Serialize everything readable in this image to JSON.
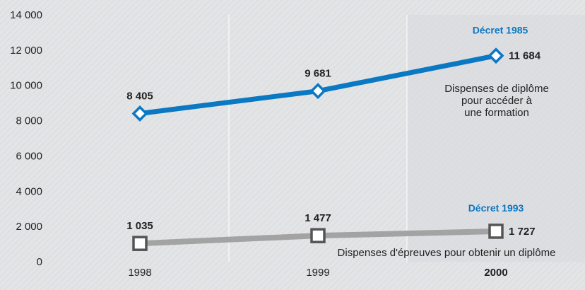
{
  "chart_data": {
    "type": "line",
    "categories": [
      "1998",
      "1999",
      "2000"
    ],
    "highlight_category": "2000",
    "ylim": [
      0,
      14000
    ],
    "yticks": [
      0,
      2000,
      4000,
      6000,
      8000,
      10000,
      12000,
      14000
    ],
    "ytick_labels": [
      "0",
      "2 000",
      "4 000",
      "6 000",
      "8 000",
      "10 000",
      "12 000",
      "14 000"
    ],
    "grid": "vertical",
    "series": [
      {
        "name": "Décret  1985",
        "values": [
          8405,
          9681,
          11684
        ],
        "value_labels": [
          "8 405",
          "9 681",
          "11 684"
        ],
        "marker": "diamond",
        "color": "#0a78c2",
        "annotation": [
          "Dispenses de diplôme",
          "pour accéder à",
          "une formation"
        ]
      },
      {
        "name": "Décret 1993",
        "values": [
          1035,
          1477,
          1727
        ],
        "value_labels": [
          "1 035",
          "1 477",
          "1 727"
        ],
        "marker": "square",
        "color": "#a3a3a3",
        "annotation": [
          "Dispenses d'épreuves pour obtenir un diplôme"
        ]
      }
    ]
  },
  "colors": {
    "background": "#e3e4e6",
    "grid": "#ffffff",
    "highlight_band": "#d8d9dc",
    "accent": "#0a78c2",
    "text": "#222222"
  }
}
